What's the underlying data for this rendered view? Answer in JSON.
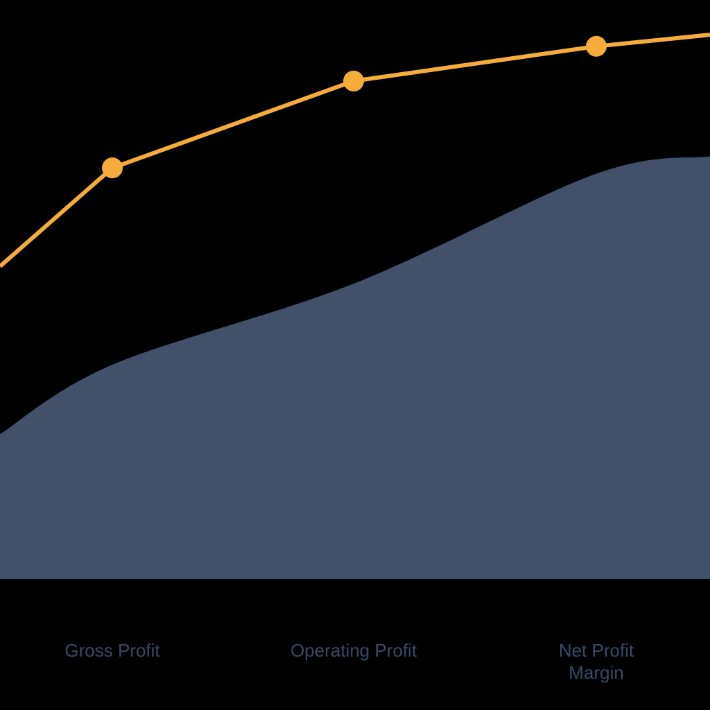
{
  "chart_data": {
    "type": "area",
    "categories": [
      "Gross Profit",
      "Operating Profit",
      "Net Profit Margin"
    ],
    "category_label_lines": [
      [
        "Gross Profit"
      ],
      [
        "Operating Profit"
      ],
      [
        "Net Profit",
        "Margin"
      ]
    ],
    "series": [
      {
        "kind": "line",
        "values": [
          71,
          86,
          92
        ],
        "edge_values": [
          54,
          94
        ]
      },
      {
        "kind": "area",
        "values": [
          37,
          51,
          70
        ],
        "edge_values": [
          25,
          73
        ]
      }
    ],
    "ylim": [
      0,
      100
    ],
    "grid": false,
    "legend": "none",
    "colors": {
      "background": "#000000",
      "area_fill": "#425069",
      "line": "#f5ac3b",
      "label": "#3a4a66"
    }
  }
}
